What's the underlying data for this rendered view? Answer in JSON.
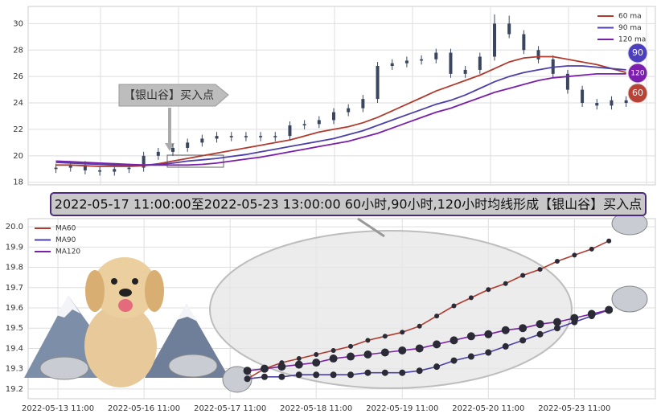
{
  "banner": "2022-05-17 11:00:00至2022-05-23 13:00:00 60小时,90小时,120小时均线形成【银山谷】买入点",
  "chart_data": [
    {
      "type": "candlestick",
      "annotation": "【银山谷】买入点",
      "color": "#3a4660",
      "grid": true,
      "legend": "upper right",
      "xlim": [
        -1.9,
        41
      ],
      "ylim": [
        17.8,
        31.3
      ],
      "yticks": [
        18,
        20,
        22,
        24,
        26,
        28,
        30
      ],
      "open": [
        19.0,
        19.1,
        19.3,
        18.9,
        18.8,
        19.0,
        19.1,
        20.0,
        20.3,
        20.6,
        21.0,
        21.3,
        21.5,
        21.4,
        21.5,
        21.4,
        21.5,
        22.3,
        22.4,
        22.7,
        23.3,
        23.6,
        24.3,
        26.8,
        27.0,
        27.2,
        27.3,
        27.8,
        26.2,
        26.5,
        27.5,
        30.0,
        29.2,
        28.0,
        27.3,
        26.2,
        25.0,
        24.0,
        23.8,
        24.2
      ],
      "high": [
        19.4,
        19.6,
        19.6,
        19.2,
        19.3,
        19.4,
        20.3,
        20.6,
        20.9,
        21.3,
        21.6,
        21.8,
        21.8,
        21.8,
        21.8,
        21.8,
        22.6,
        22.7,
        23.0,
        23.6,
        23.9,
        24.6,
        27.1,
        27.3,
        27.5,
        27.6,
        28.1,
        28.1,
        26.8,
        27.8,
        30.7,
        30.6,
        29.5,
        28.3,
        27.6,
        26.5,
        25.3,
        24.3,
        24.5,
        24.5
      ],
      "low": [
        18.7,
        18.8,
        18.6,
        18.5,
        18.5,
        18.7,
        18.8,
        19.7,
        20.0,
        20.3,
        20.7,
        21.0,
        21.1,
        21.1,
        21.1,
        21.1,
        21.2,
        22.0,
        22.1,
        22.4,
        23.0,
        23.3,
        24.0,
        26.5,
        26.7,
        26.9,
        27.0,
        25.9,
        25.9,
        26.2,
        27.2,
        28.9,
        27.7,
        27.0,
        25.9,
        24.7,
        23.7,
        23.5,
        23.5,
        23.7
      ],
      "close": [
        19.1,
        19.3,
        18.9,
        18.8,
        19.0,
        19.1,
        20.0,
        20.3,
        20.6,
        21.0,
        21.3,
        21.5,
        21.4,
        21.5,
        21.4,
        21.5,
        22.3,
        22.4,
        22.7,
        23.3,
        23.6,
        24.3,
        26.8,
        27.0,
        27.2,
        27.3,
        27.8,
        26.2,
        26.5,
        27.5,
        30.0,
        29.2,
        28.0,
        27.3,
        26.2,
        25.0,
        24.0,
        23.8,
        24.2,
        24.0
      ],
      "series": [
        {
          "name": "60 ma",
          "color": "#b03a2e",
          "values": [
            19.3,
            19.3,
            19.25,
            19.2,
            19.2,
            19.2,
            19.25,
            19.4,
            19.6,
            19.8,
            20.0,
            20.2,
            20.4,
            20.6,
            20.8,
            21.0,
            21.2,
            21.5,
            21.8,
            22.0,
            22.2,
            22.5,
            22.9,
            23.4,
            23.9,
            24.4,
            24.9,
            25.3,
            25.7,
            26.1,
            26.6,
            27.1,
            27.4,
            27.5,
            27.5,
            27.3,
            27.1,
            26.9,
            26.6,
            26.3
          ]
        },
        {
          "name": "90 ma",
          "color": "#4b3fa8",
          "values": [
            19.5,
            19.45,
            19.4,
            19.35,
            19.3,
            19.3,
            19.3,
            19.35,
            19.45,
            19.6,
            19.7,
            19.8,
            19.95,
            20.1,
            20.3,
            20.5,
            20.7,
            20.9,
            21.1,
            21.3,
            21.6,
            21.9,
            22.3,
            22.7,
            23.1,
            23.5,
            23.9,
            24.2,
            24.6,
            25.1,
            25.6,
            26.0,
            26.3,
            26.5,
            26.7,
            26.8,
            26.8,
            26.7,
            26.6,
            26.5
          ]
        },
        {
          "name": "120 ma",
          "color": "#7a1fa8",
          "values": [
            19.6,
            19.55,
            19.5,
            19.45,
            19.4,
            19.35,
            19.3,
            19.3,
            19.3,
            19.3,
            19.35,
            19.45,
            19.6,
            19.75,
            19.9,
            20.1,
            20.3,
            20.5,
            20.7,
            20.9,
            21.1,
            21.4,
            21.7,
            22.1,
            22.5,
            22.9,
            23.3,
            23.6,
            24.0,
            24.4,
            24.8,
            25.1,
            25.4,
            25.7,
            25.9,
            26.0,
            26.1,
            26.2,
            26.2,
            26.2
          ]
        }
      ],
      "badges": [
        {
          "label": "90",
          "color": "#4b3fbf"
        },
        {
          "label": "120",
          "color": "#7d1fae"
        },
        {
          "label": "60",
          "color": "#b84236"
        }
      ]
    },
    {
      "type": "line",
      "grid": true,
      "legend": "upper left",
      "marker_color": "#2b2b38",
      "xlim": [
        -1.73,
        34.7
      ],
      "ylim": [
        19.152,
        20.04
      ],
      "xticks": [
        {
          "value": 0,
          "label": "2022-05-13 11:00"
        },
        {
          "value": 5,
          "label": "2022-05-16 11:00"
        },
        {
          "value": 10,
          "label": "2022-05-17 11:00"
        },
        {
          "value": 15,
          "label": "2022-05-18 11:00"
        },
        {
          "value": 20,
          "label": "2022-05-19 11:00"
        },
        {
          "value": 25,
          "label": "2022-05-20 11:00"
        },
        {
          "value": 30,
          "label": "2022-05-23 11:00"
        }
      ],
      "yticks": [
        19.2,
        19.3,
        19.4,
        19.5,
        19.6,
        19.7,
        19.8,
        19.9,
        {
          "value": 20,
          "label": "20.0"
        }
      ],
      "x": [
        11,
        12,
        13,
        14,
        15,
        16,
        17,
        18,
        19,
        20,
        21,
        22,
        23,
        24,
        25,
        26,
        27,
        28,
        29,
        30,
        31,
        32
      ],
      "series": [
        {
          "name": "MA60",
          "color": "#b03a2e",
          "values": [
            19.25,
            19.3,
            19.33,
            19.35,
            19.37,
            19.39,
            19.41,
            19.44,
            19.46,
            19.48,
            19.51,
            19.56,
            19.61,
            19.65,
            19.69,
            19.72,
            19.76,
            19.79,
            19.83,
            19.86,
            19.89,
            19.93
          ]
        },
        {
          "name": "MA90",
          "color": "#4b3fa8",
          "values": [
            19.25,
            19.26,
            19.26,
            19.27,
            19.27,
            19.27,
            19.27,
            19.28,
            19.28,
            19.28,
            19.29,
            19.31,
            19.34,
            19.36,
            19.38,
            19.41,
            19.44,
            19.47,
            19.5,
            19.53,
            19.56,
            19.59
          ]
        },
        {
          "name": "MA120",
          "color": "#7a1fa8",
          "values": [
            19.29,
            19.3,
            19.31,
            19.32,
            19.33,
            19.35,
            19.36,
            19.37,
            19.38,
            19.39,
            19.4,
            19.42,
            19.44,
            19.46,
            19.47,
            19.49,
            19.5,
            19.52,
            19.53,
            19.55,
            19.57,
            19.59
          ]
        }
      ]
    }
  ]
}
